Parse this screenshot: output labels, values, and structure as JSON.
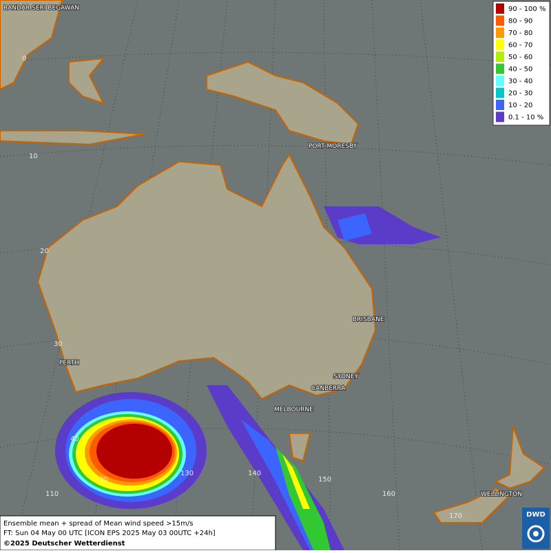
{
  "map": {
    "cities": [
      "BANDAR SERI BEGAWAN",
      "PORT MORESBY",
      "BRISBANE",
      "PERTH",
      "SYDNEY",
      "CANBERRA",
      "MELBOURNE",
      "WELLINGTON"
    ],
    "grid_labels": [
      "0",
      "10",
      "20",
      "30",
      "40",
      "110",
      "120",
      "130",
      "140",
      "150",
      "160",
      "170"
    ],
    "legend": [
      {
        "label": "90 - 100 %",
        "color": "#b40000"
      },
      {
        "label": "80 - 90",
        "color": "#ff5a00"
      },
      {
        "label": "70 - 80",
        "color": "#ff9b00"
      },
      {
        "label": "60 - 70",
        "color": "#ffff00"
      },
      {
        "label": "50 - 60",
        "color": "#b4f000"
      },
      {
        "label": "40 - 50",
        "color": "#32c832"
      },
      {
        "label": "30 - 40",
        "color": "#64ffff"
      },
      {
        "label": "20 - 30",
        "color": "#00c8c8"
      },
      {
        "label": "10 - 20",
        "color": "#3c64ff"
      },
      {
        "label": "0.1 - 10 %",
        "color": "#5a3cc8"
      }
    ],
    "footer": [
      "Ensemble mean + spread of Mean wind speed >15m/s",
      "FT: Sun 04 May 00 UTC [ICON EPS 2025 May 03 00UTC +24h]",
      "©2025 Deutscher Wetterdienst"
    ],
    "logo": "DWD"
  }
}
